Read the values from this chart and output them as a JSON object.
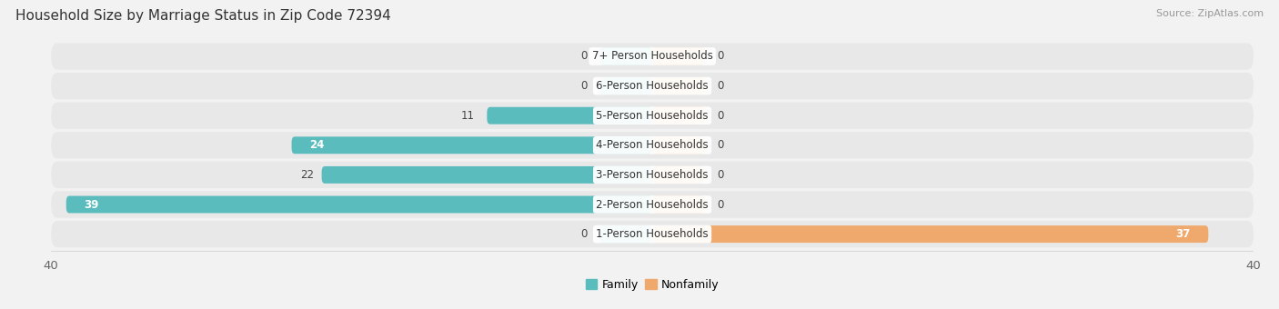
{
  "title": "Household Size by Marriage Status in Zip Code 72394",
  "source": "Source: ZipAtlas.com",
  "categories": [
    "7+ Person Households",
    "6-Person Households",
    "5-Person Households",
    "4-Person Households",
    "3-Person Households",
    "2-Person Households",
    "1-Person Households"
  ],
  "family_values": [
    0,
    0,
    11,
    24,
    22,
    39,
    0
  ],
  "nonfamily_values": [
    0,
    0,
    0,
    0,
    0,
    0,
    37
  ],
  "family_color": "#5bbcbe",
  "nonfamily_color": "#f0a96c",
  "family_stub": 3.5,
  "nonfamily_stub": 3.5,
  "bar_height": 0.58,
  "xlim": [
    -40,
    40
  ],
  "background_color": "#f2f2f2",
  "row_color": "#e8e8e8",
  "title_fontsize": 11,
  "source_fontsize": 8,
  "label_fontsize": 8.5,
  "value_fontsize": 8.5,
  "tick_fontsize": 9.5,
  "legend_fontsize": 9
}
